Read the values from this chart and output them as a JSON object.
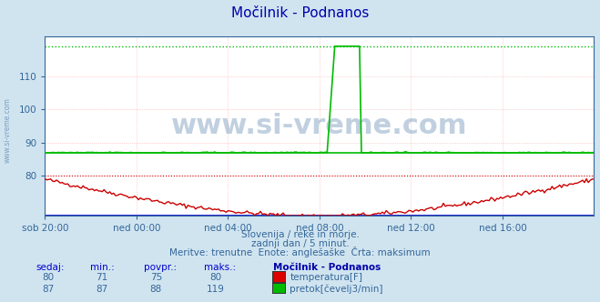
{
  "title": "Močilnik - Podnanos",
  "bg_color": "#d0e4f0",
  "plot_bg_color": "#ffffff",
  "xlabel_color": "#336699",
  "ylabel_labels": [
    80,
    90,
    100,
    110
  ],
  "y_min": 68,
  "y_max": 122,
  "x_ticks_labels": [
    "sob 20:00",
    "ned 00:00",
    "ned 04:00",
    "ned 08:00",
    "ned 12:00",
    "ned 16:00"
  ],
  "x_ticks_pos": [
    0,
    48,
    96,
    144,
    192,
    240
  ],
  "total_points": 289,
  "temp_color": "#cc0000",
  "flow_color": "#00bb00",
  "temp_max_value": 80,
  "flow_max_value": 119,
  "flow_avg_value": 87,
  "subtitle1": "Slovenija / reke in morje.",
  "subtitle2": "zadnji dan / 5 minut.",
  "subtitle3": "Meritve: trenutne  Enote: anglešaške  Črta: maksimum",
  "legend_title": "Močilnik - Podnanos",
  "legend_items": [
    {
      "label": "temperatura[F]",
      "color": "#dd0000",
      "sedaj": 80,
      "min": 71,
      "povpr": 75,
      "maks": 80
    },
    {
      "label": "pretok[čevelj3/min]",
      "color": "#00bb00",
      "sedaj": 87,
      "min": 87,
      "povpr": 88,
      "maks": 119
    }
  ],
  "watermark": "www.si-vreme.com",
  "watermark_color": "#336699",
  "spike_start": 148,
  "spike_peak": 152,
  "spike_end": 166
}
